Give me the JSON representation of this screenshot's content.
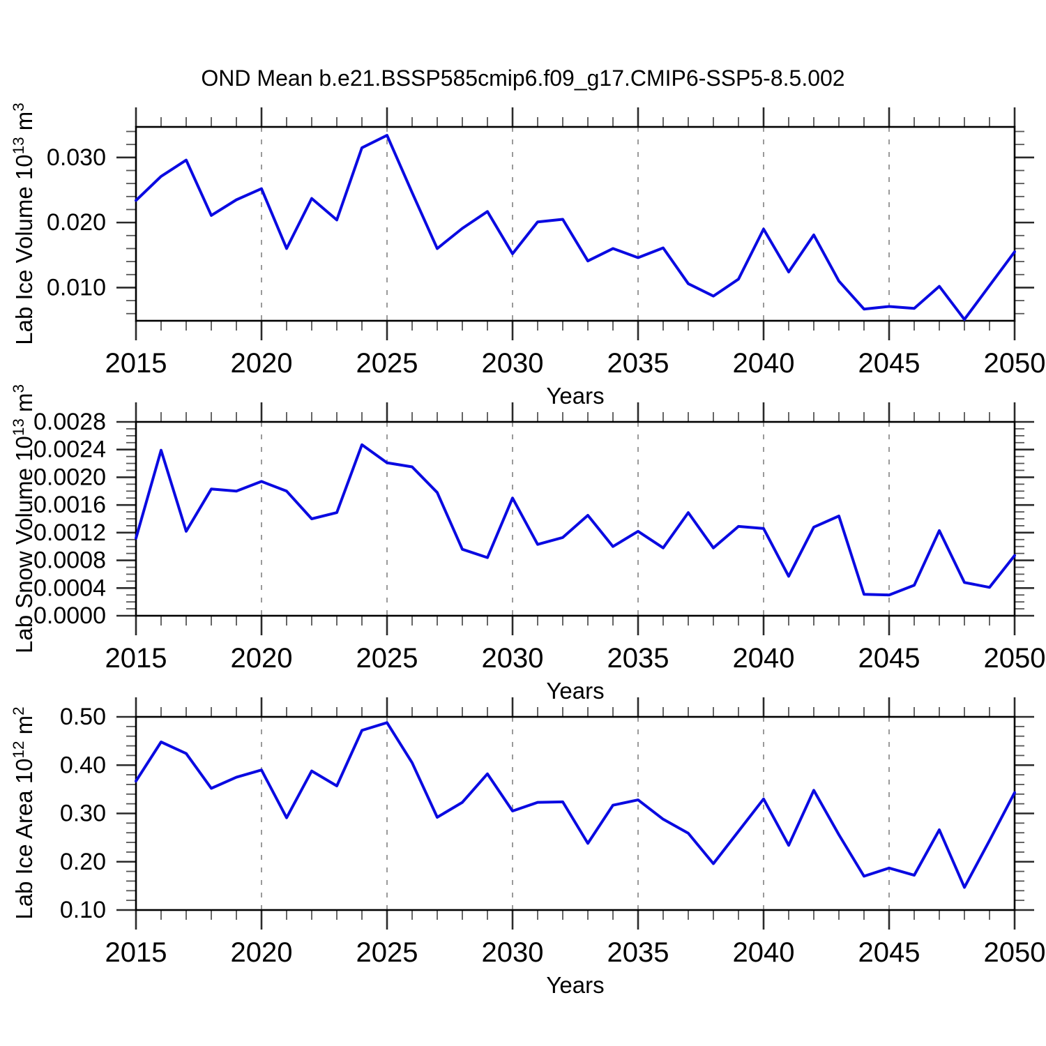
{
  "title": "OND Mean b.e21.BSSP585cmip6.f09_g17.CMIP6-SSP5-8.5.002",
  "style": {
    "line_color": "#0a0ae1",
    "grid_color": "#9a9a9a",
    "axis_color": "#000000",
    "major_tick_color": "#2a2a2a",
    "minor_tick_color": "#555555",
    "background": "#ffffff"
  },
  "chart_data": [
    {
      "type": "line",
      "name": "lab-ice-volume",
      "ylabel": "Lab Ice Volume 10^13 m^3",
      "xlabel": "Years",
      "x": [
        2015,
        2016,
        2017,
        2018,
        2019,
        2020,
        2021,
        2022,
        2023,
        2024,
        2025,
        2026,
        2027,
        2028,
        2029,
        2030,
        2031,
        2032,
        2033,
        2034,
        2035,
        2036,
        2037,
        2038,
        2039,
        2040,
        2041,
        2042,
        2043,
        2044,
        2045,
        2046,
        2047,
        2048,
        2049,
        2050
      ],
      "values": [
        0.0234,
        0.0271,
        0.0296,
        0.0211,
        0.0235,
        0.0252,
        0.016,
        0.0237,
        0.0204,
        0.0315,
        0.0334,
        0.0246,
        0.016,
        0.0191,
        0.0217,
        0.0152,
        0.0201,
        0.0205,
        0.0141,
        0.016,
        0.0146,
        0.0161,
        0.0106,
        0.0087,
        0.0113,
        0.019,
        0.0124,
        0.0181,
        0.011,
        0.0067,
        0.0071,
        0.0068,
        0.0102,
        0.0051,
        0.0103,
        0.0155
      ],
      "ylim": [
        0.0049,
        0.0347
      ],
      "yticks": [
        0.01,
        0.02,
        0.03
      ],
      "ytick_labels": [
        "0.010",
        "0.020",
        "0.030"
      ],
      "yminor_step": 0.002,
      "xlim": [
        2015,
        2050
      ],
      "xticks": [
        2015,
        2020,
        2025,
        2030,
        2035,
        2040,
        2045,
        2050
      ],
      "xtick_labels": [
        "2015",
        "2020",
        "2025",
        "2030",
        "2035",
        "2040",
        "2045",
        "2050"
      ],
      "xminor_step": 1,
      "grid_x": [
        2020,
        2025,
        2030,
        2035,
        2040,
        2045
      ],
      "grid_style": "vertical-dashed",
      "legend": "none"
    },
    {
      "type": "line",
      "name": "lab-snow-volume",
      "ylabel": "Lab Snow Volume 10^13 m^3",
      "xlabel": "Years",
      "x": [
        2015,
        2016,
        2017,
        2018,
        2019,
        2020,
        2021,
        2022,
        2023,
        2024,
        2025,
        2026,
        2027,
        2028,
        2029,
        2030,
        2031,
        2032,
        2033,
        2034,
        2035,
        2036,
        2037,
        2038,
        2039,
        2040,
        2041,
        2042,
        2043,
        2044,
        2045,
        2046,
        2047,
        2048,
        2049,
        2050
      ],
      "values": [
        0.00112,
        0.00239,
        0.00122,
        0.00183,
        0.0018,
        0.00194,
        0.0018,
        0.0014,
        0.00149,
        0.00247,
        0.00221,
        0.00215,
        0.00178,
        0.00096,
        0.00084,
        0.0017,
        0.00103,
        0.00113,
        0.00145,
        0.001,
        0.00122,
        0.00098,
        0.00149,
        0.00098,
        0.00129,
        0.00126,
        0.00057,
        0.00128,
        0.00144,
        0.00031,
        0.0003,
        0.00044,
        0.00123,
        0.00048,
        0.00041,
        0.00087
      ],
      "ylim": [
        0.0,
        0.0028
      ],
      "yticks": [
        0.0,
        0.0004,
        0.0008,
        0.0012,
        0.0016,
        0.002,
        0.0024,
        0.0028
      ],
      "ytick_labels": [
        "0.0000",
        "0.0004",
        "0.0008",
        "0.0012",
        "0.0016",
        "0.0020",
        "0.0024",
        "0.0028"
      ],
      "yminor_step": 0.0001,
      "xlim": [
        2015,
        2050
      ],
      "xticks": [
        2015,
        2020,
        2025,
        2030,
        2035,
        2040,
        2045,
        2050
      ],
      "xtick_labels": [
        "2015",
        "2020",
        "2025",
        "2030",
        "2035",
        "2040",
        "2045",
        "2050"
      ],
      "xminor_step": 1,
      "grid_x": [
        2020,
        2025,
        2030,
        2035,
        2040,
        2045
      ],
      "grid_style": "vertical-dashed",
      "legend": "none"
    },
    {
      "type": "line",
      "name": "lab-ice-area",
      "ylabel": "Lab Ice Area 10^12 m^2",
      "xlabel": "Years",
      "x": [
        2015,
        2016,
        2017,
        2018,
        2019,
        2020,
        2021,
        2022,
        2023,
        2024,
        2025,
        2026,
        2027,
        2028,
        2029,
        2030,
        2031,
        2032,
        2033,
        2034,
        2035,
        2036,
        2037,
        2038,
        2039,
        2040,
        2041,
        2042,
        2043,
        2044,
        2045,
        2046,
        2047,
        2048,
        2049,
        2050
      ],
      "values": [
        0.367,
        0.448,
        0.424,
        0.352,
        0.375,
        0.39,
        0.291,
        0.388,
        0.357,
        0.472,
        0.488,
        0.405,
        0.292,
        0.323,
        0.382,
        0.305,
        0.323,
        0.324,
        0.238,
        0.317,
        0.328,
        0.288,
        0.259,
        0.196,
        0.263,
        0.33,
        0.234,
        0.348,
        0.256,
        0.17,
        0.187,
        0.172,
        0.266,
        0.147,
        0.244,
        0.343
      ],
      "ylim": [
        0.1,
        0.5
      ],
      "yticks": [
        0.1,
        0.2,
        0.3,
        0.4,
        0.5
      ],
      "ytick_labels": [
        "0.10",
        "0.20",
        "0.30",
        "0.40",
        "0.50"
      ],
      "yminor_step": 0.02,
      "xlim": [
        2015,
        2050
      ],
      "xticks": [
        2015,
        2020,
        2025,
        2030,
        2035,
        2040,
        2045,
        2050
      ],
      "xtick_labels": [
        "2015",
        "2020",
        "2025",
        "2030",
        "2035",
        "2040",
        "2045",
        "2050"
      ],
      "xminor_step": 1,
      "grid_x": [
        2020,
        2025,
        2030,
        2035,
        2040,
        2045
      ],
      "grid_style": "vertical-dashed",
      "legend": "none"
    }
  ]
}
